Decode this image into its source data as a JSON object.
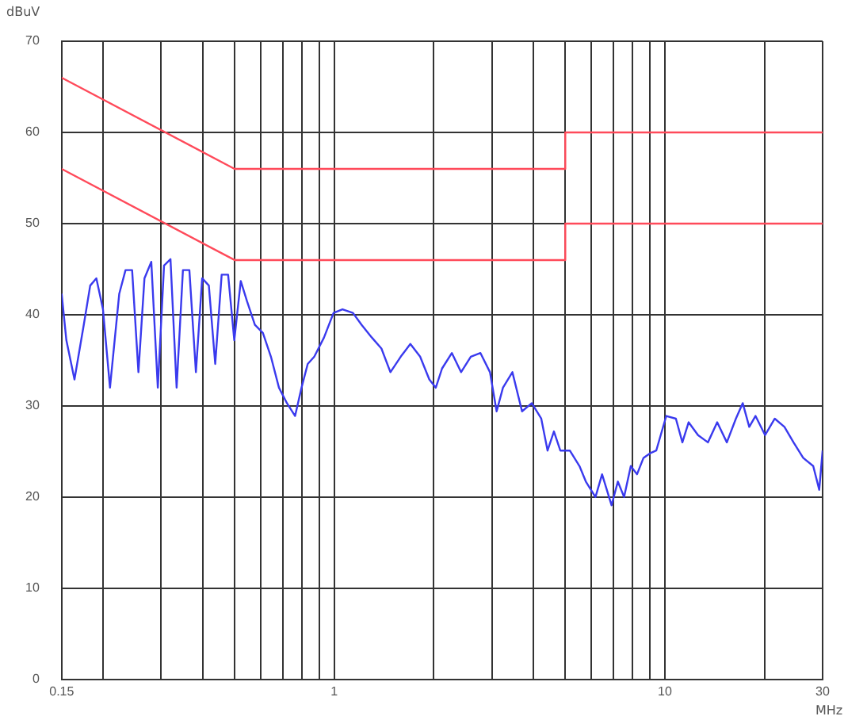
{
  "chart_data": {
    "type": "line",
    "xlabel": "MHz",
    "ylabel": "dBuV",
    "log": "x",
    "grid": true,
    "legend": false,
    "marker": "none",
    "line_style": "solid",
    "xlim": [
      0.15,
      30
    ],
    "ylim": [
      0,
      70
    ],
    "xticks": [
      {
        "value": 0.15,
        "label": "0.15"
      },
      {
        "value": 0.2,
        "label": null
      },
      {
        "value": 0.3,
        "label": null
      },
      {
        "value": 0.4,
        "label": null
      },
      {
        "value": 0.5,
        "label": null
      },
      {
        "value": 0.6,
        "label": null
      },
      {
        "value": 0.7,
        "label": null
      },
      {
        "value": 0.8,
        "label": null
      },
      {
        "value": 0.9,
        "label": null
      },
      1,
      {
        "value": 2,
        "label": null
      },
      {
        "value": 3,
        "label": null
      },
      {
        "value": 4,
        "label": null
      },
      {
        "value": 5,
        "label": null
      },
      {
        "value": 6,
        "label": null
      },
      {
        "value": 7,
        "label": null
      },
      {
        "value": 8,
        "label": null
      },
      {
        "value": 9,
        "label": null
      },
      10,
      {
        "value": 20,
        "label": null
      },
      30
    ],
    "yticks": [
      0,
      10,
      20,
      30,
      40,
      50,
      60,
      70
    ],
    "series": [
      {
        "color": "#ff4a5a",
        "x": [
          0.15,
          0.5,
          5,
          5,
          30
        ],
        "values": [
          66,
          56,
          56,
          60,
          60
        ]
      },
      {
        "color": "#ff4a5a",
        "x": [
          0.15,
          0.5,
          5,
          5,
          30
        ],
        "values": [
          56,
          46,
          46,
          50,
          50
        ]
      },
      {
        "color": "#3a3aee",
        "x": [
          0.15,
          0.155,
          0.164,
          0.175,
          0.183,
          0.191,
          0.2,
          0.21,
          0.224,
          0.234,
          0.245,
          0.256,
          0.267,
          0.28,
          0.293,
          0.306,
          0.32,
          0.334,
          0.349,
          0.365,
          0.382,
          0.399,
          0.418,
          0.437,
          0.457,
          0.478,
          0.499,
          0.522,
          0.545,
          0.576,
          0.609,
          0.644,
          0.681,
          0.72,
          0.762,
          0.797,
          0.832,
          0.871,
          0.932,
          0.996,
          1.06,
          1.14,
          1.21,
          1.3,
          1.39,
          1.48,
          1.59,
          1.7,
          1.82,
          1.94,
          2.03,
          2.12,
          2.27,
          2.42,
          2.59,
          2.77,
          2.96,
          3.1,
          3.24,
          3.46,
          3.7,
          3.96,
          4.23,
          4.42,
          4.62,
          4.83,
          5.16,
          5.52,
          5.77,
          6.17,
          6.46,
          6.9,
          7.21,
          7.53,
          7.89,
          8.24,
          8.62,
          9.02,
          9.42,
          10.1,
          10.8,
          11.3,
          11.8,
          12.6,
          13.5,
          14.4,
          15.4,
          16.4,
          17.2,
          18,
          18.8,
          20.1,
          21.5,
          23,
          24.5,
          26.2,
          28.1,
          29.3,
          30
        ],
        "values": [
          42.3,
          37.2,
          32.9,
          38.9,
          43.2,
          44,
          40.6,
          32,
          42.3,
          44.9,
          44.9,
          33.7,
          44,
          45.8,
          32,
          45.4,
          46.1,
          32,
          44.9,
          44.9,
          33.7,
          44,
          43.2,
          34.6,
          44.4,
          44.4,
          37.2,
          43.7,
          41.5,
          38.9,
          38,
          35.4,
          32,
          30.3,
          28.9,
          32,
          34.6,
          35.4,
          37.5,
          40.2,
          40.6,
          40.2,
          38.9,
          37.5,
          36.3,
          33.7,
          35.4,
          36.8,
          35.4,
          32.9,
          32,
          34.1,
          35.8,
          33.7,
          35.4,
          35.8,
          33.7,
          29.4,
          32,
          33.7,
          29.4,
          30.3,
          28.6,
          25.1,
          27.2,
          25.1,
          25.1,
          23.4,
          21.7,
          20,
          22.5,
          19.1,
          21.7,
          20,
          23.4,
          22.5,
          24.3,
          24.8,
          25.1,
          28.9,
          28.6,
          26,
          28.2,
          26.8,
          26,
          28.2,
          26,
          28.6,
          30.3,
          27.7,
          28.9,
          26.8,
          28.6,
          27.7,
          26,
          24.3,
          23.4,
          20.8,
          25.1
        ]
      }
    ]
  }
}
